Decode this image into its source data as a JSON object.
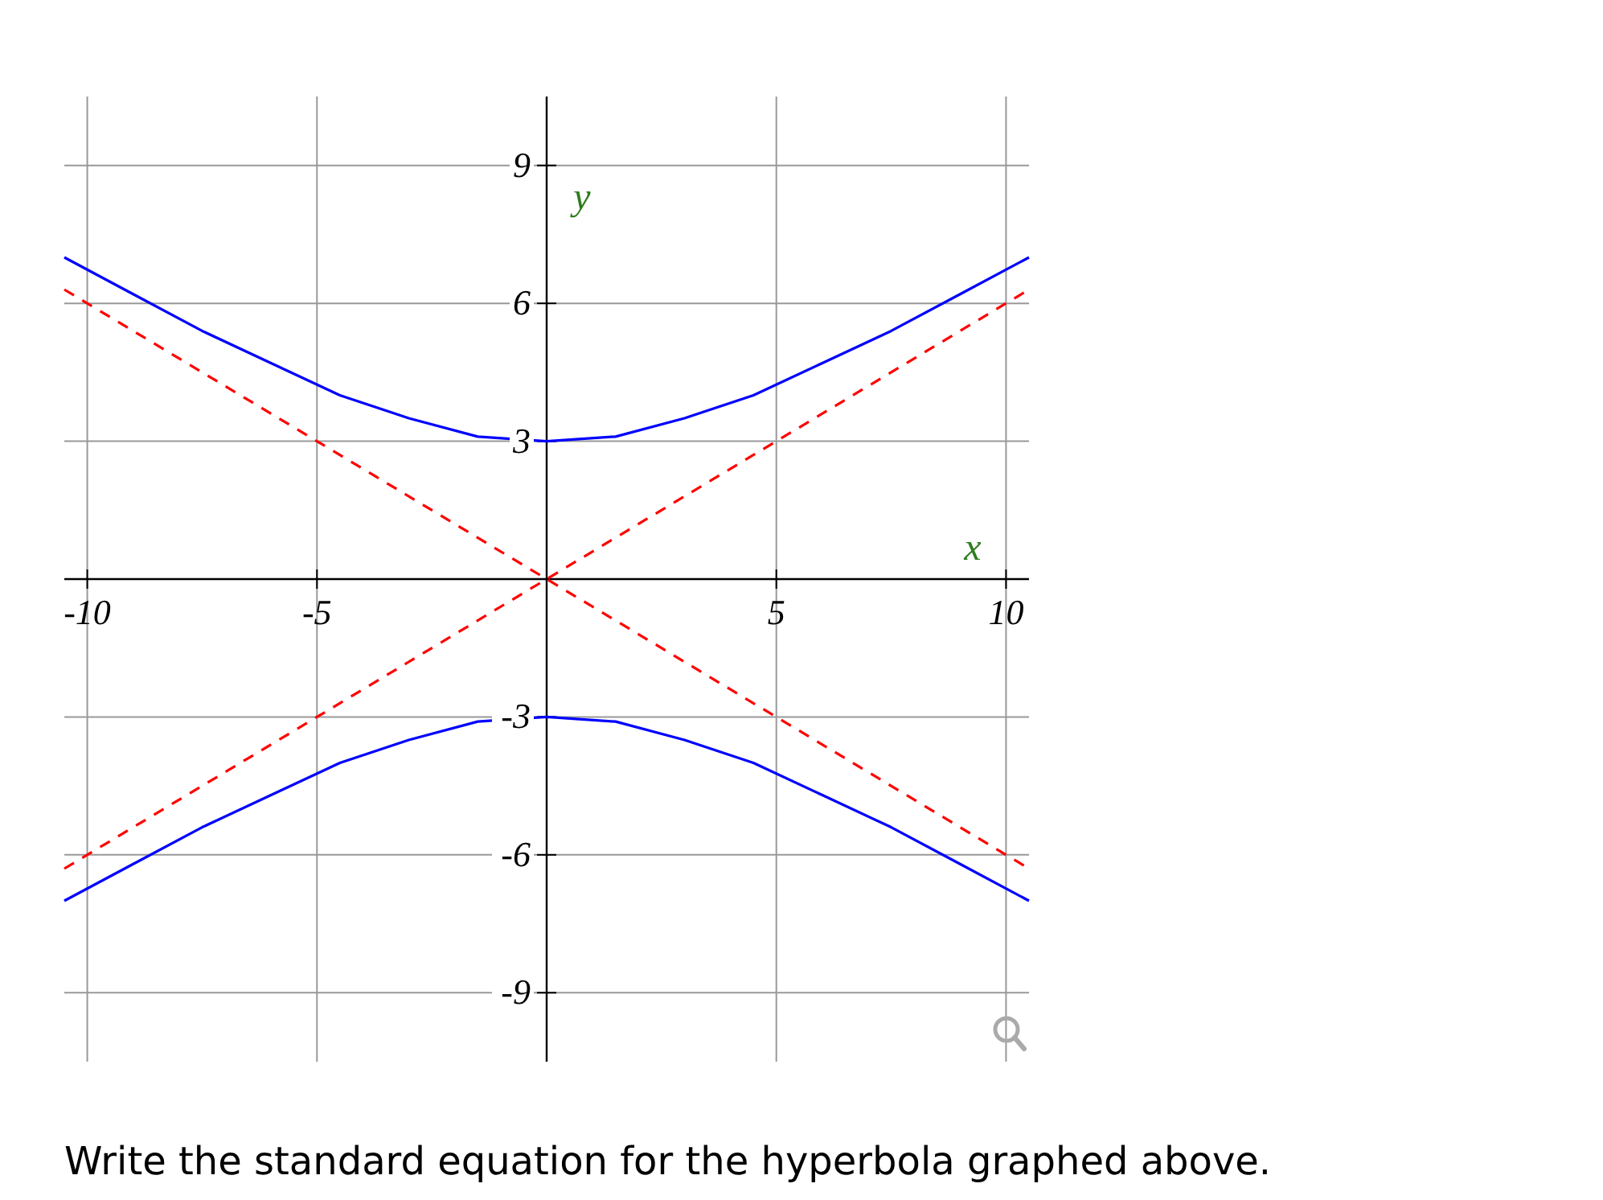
{
  "chart_data": {
    "type": "line",
    "xlabel": "x",
    "ylabel": "y",
    "xlim": [
      -10.5,
      10.5
    ],
    "ylim": [
      -10.5,
      10.5
    ],
    "xticks": [
      -10,
      -5,
      5,
      10
    ],
    "yticks": [
      -9,
      -6,
      -3,
      3,
      6,
      9
    ],
    "grid": true,
    "series": [
      {
        "color": "#0000ff",
        "line_style": "solid",
        "x": [
          -10.5,
          -9,
          -7.5,
          -6,
          -4.5,
          -3,
          -1.5,
          0,
          1.5,
          3,
          4.5,
          6,
          7.5,
          9,
          10.5
        ],
        "values": [
          7.0,
          6.2,
          5.4,
          4.7,
          4.0,
          3.5,
          3.1,
          3.0,
          3.1,
          3.5,
          4.0,
          4.7,
          5.4,
          6.2,
          7.0
        ]
      },
      {
        "color": "#0000ff",
        "line_style": "solid",
        "x": [
          -10.5,
          -9,
          -7.5,
          -6,
          -4.5,
          -3,
          -1.5,
          0,
          1.5,
          3,
          4.5,
          6,
          7.5,
          9,
          10.5
        ],
        "values": [
          -7.0,
          -6.2,
          -5.4,
          -4.7,
          -4.0,
          -3.5,
          -3.1,
          -3.0,
          -3.1,
          -3.5,
          -4.0,
          -4.7,
          -5.4,
          -6.2,
          -7.0
        ]
      },
      {
        "color": "#ff0000",
        "line_style": "dashed",
        "x": [
          -10.5,
          0,
          10.5
        ],
        "values": [
          6.3,
          0,
          -6.3
        ]
      },
      {
        "color": "#ff0000",
        "line_style": "dashed",
        "x": [
          -10.5,
          0,
          10.5
        ],
        "values": [
          -6.3,
          0,
          6.3
        ]
      }
    ],
    "annotations": [
      "Write the standard equation for the hyperbola graphed above."
    ]
  }
}
